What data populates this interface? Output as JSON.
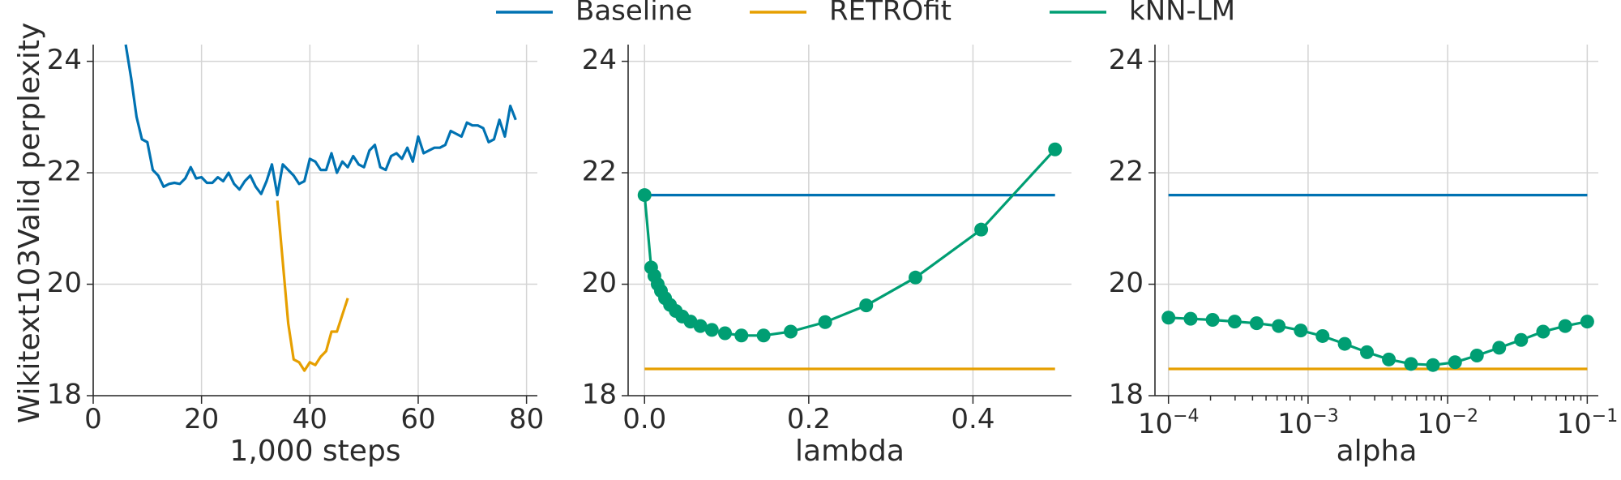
{
  "legend": [
    {
      "name": "Baseline",
      "color": "#0072B2"
    },
    {
      "name": "RETROfit",
      "color": "#E69F00"
    },
    {
      "name": "kNN-LM",
      "color": "#009E73"
    }
  ],
  "ylabel": "Wikitext103Valid perplexity",
  "chart_data": [
    {
      "type": "line",
      "xlabel": "1,000 steps",
      "ylabel": "Wikitext103Valid perplexity",
      "xlim": [
        0,
        82
      ],
      "ylim": [
        18,
        24.3
      ],
      "xticks": [
        0,
        20,
        40,
        60,
        80
      ],
      "yticks": [
        18,
        20,
        22,
        24
      ],
      "grid": true,
      "series": [
        {
          "name": "Baseline",
          "color": "#0072B2",
          "x": [
            6,
            7,
            8,
            9,
            10,
            11,
            12,
            13,
            14,
            15,
            16,
            17,
            18,
            19,
            20,
            21,
            22,
            23,
            24,
            25,
            26,
            27,
            28,
            29,
            30,
            31,
            32,
            33,
            34,
            35,
            36,
            37,
            38,
            39,
            40,
            41,
            42,
            43,
            44,
            45,
            46,
            47,
            48,
            49,
            50,
            51,
            52,
            53,
            54,
            55,
            56,
            57,
            58,
            59,
            60,
            61,
            62,
            63,
            64,
            65,
            66,
            67,
            68,
            69,
            70,
            71,
            72,
            73,
            74,
            75,
            76,
            77,
            78
          ],
          "y": [
            24.3,
            23.7,
            23.0,
            22.6,
            22.55,
            22.05,
            21.95,
            21.75,
            21.8,
            21.82,
            21.8,
            21.9,
            22.1,
            21.9,
            21.92,
            21.82,
            21.82,
            21.92,
            21.85,
            22.0,
            21.8,
            21.7,
            21.85,
            21.95,
            21.75,
            21.62,
            21.85,
            22.15,
            21.6,
            22.15,
            22.05,
            21.95,
            21.8,
            21.85,
            22.25,
            22.2,
            22.05,
            22.05,
            22.35,
            22.0,
            22.2,
            22.1,
            22.3,
            22.15,
            22.1,
            22.4,
            22.5,
            22.1,
            22.05,
            22.3,
            22.35,
            22.25,
            22.45,
            22.2,
            22.65,
            22.35,
            22.4,
            22.45,
            22.45,
            22.5,
            22.75,
            22.7,
            22.65,
            22.9,
            22.85,
            22.85,
            22.8,
            22.55,
            22.6,
            22.95,
            22.65,
            23.2,
            22.95
          ]
        },
        {
          "name": "RETROfit",
          "color": "#E69F00",
          "x": [
            34,
            35,
            36,
            37,
            38,
            39,
            40,
            41,
            42,
            43,
            44,
            45,
            46,
            47
          ],
          "y": [
            21.5,
            20.4,
            19.3,
            18.65,
            18.6,
            18.45,
            18.6,
            18.55,
            18.7,
            18.8,
            19.15,
            19.15,
            19.45,
            19.75
          ]
        }
      ]
    },
    {
      "type": "line",
      "xlabel": "lambda",
      "xlim": [
        -0.02,
        0.52
      ],
      "ylim": [
        18,
        24.3
      ],
      "xticks": [
        0.0,
        0.2,
        0.4
      ],
      "yticks": [
        18,
        20,
        22,
        24
      ],
      "grid": true,
      "series": [
        {
          "name": "Baseline",
          "color": "#0072B2",
          "x": [
            0,
            0.5
          ],
          "y": [
            21.6,
            21.6
          ]
        },
        {
          "name": "RETROfit",
          "color": "#E69F00",
          "x": [
            0,
            0.5
          ],
          "y": [
            18.48,
            18.48
          ]
        },
        {
          "name": "kNN-LM",
          "color": "#009E73",
          "markers": true,
          "x": [
            0.0,
            0.008,
            0.012,
            0.016,
            0.02,
            0.025,
            0.031,
            0.038,
            0.046,
            0.056,
            0.068,
            0.082,
            0.098,
            0.118,
            0.145,
            0.178,
            0.22,
            0.27,
            0.33,
            0.41,
            0.5
          ],
          "y": [
            21.6,
            20.3,
            20.15,
            20.0,
            19.88,
            19.75,
            19.63,
            19.52,
            19.42,
            19.33,
            19.25,
            19.18,
            19.12,
            19.08,
            19.08,
            19.15,
            19.32,
            19.62,
            20.12,
            20.98,
            22.42
          ]
        }
      ]
    },
    {
      "type": "line",
      "xlabel": "alpha",
      "xscale": "log",
      "xlim": [
        8e-05,
        0.12
      ],
      "ylim": [
        18,
        24.3
      ],
      "xticks": [
        0.0001,
        0.001,
        0.01,
        0.1
      ],
      "xtick_labels": [
        {
          "base": "10",
          "exp": "−4"
        },
        {
          "base": "10",
          "exp": "−3"
        },
        {
          "base": "10",
          "exp": "−2"
        },
        {
          "base": "10",
          "exp": "−1"
        }
      ],
      "yticks": [
        18,
        20,
        22,
        24
      ],
      "grid": true,
      "series": [
        {
          "name": "Baseline",
          "color": "#0072B2",
          "x": [
            0.0001,
            0.1
          ],
          "y": [
            21.6,
            21.6
          ]
        },
        {
          "name": "RETROfit",
          "color": "#E69F00",
          "x": [
            0.0001,
            0.1
          ],
          "y": [
            18.48,
            18.48
          ]
        },
        {
          "name": "kNN-LM",
          "color": "#009E73",
          "markers": true,
          "x": [
            0.0001,
            0.000144,
            0.000207,
            0.000298,
            0.000428,
            0.000616,
            0.000886,
            0.00127,
            0.00183,
            0.00264,
            0.00379,
            0.00546,
            0.00785,
            0.0113,
            0.0162,
            0.0234,
            0.0336,
            0.0483,
            0.0695,
            0.1
          ],
          "y": [
            19.4,
            19.38,
            19.36,
            19.33,
            19.3,
            19.25,
            19.17,
            19.07,
            18.93,
            18.78,
            18.65,
            18.57,
            18.55,
            18.6,
            18.72,
            18.86,
            19.0,
            19.15,
            19.25,
            19.33
          ]
        }
      ]
    }
  ]
}
